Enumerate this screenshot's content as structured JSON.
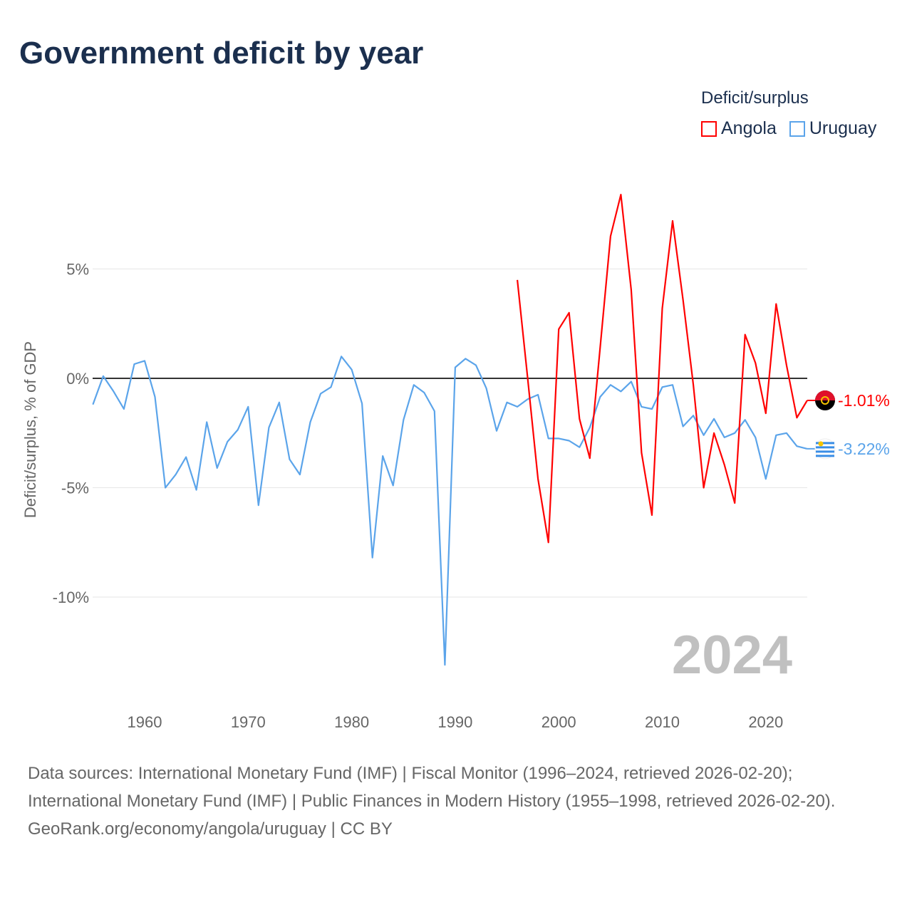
{
  "title": "Government deficit by year",
  "legend_title": "Deficit/surplus",
  "chart_data": {
    "type": "line",
    "title": "Government deficit by year",
    "ylabel": "Deficit/surplus, % of GDP",
    "xlabel": "",
    "xlim": [
      1955,
      2024
    ],
    "ylim": [
      -14,
      9
    ],
    "x_ticks": [
      1960,
      1970,
      1980,
      1990,
      2000,
      2010,
      2020
    ],
    "y_ticks": [
      {
        "v": 5,
        "label": "5%"
      },
      {
        "v": 0,
        "label": "0%"
      },
      {
        "v": -5,
        "label": "-5%"
      },
      {
        "v": -10,
        "label": "-10%"
      }
    ],
    "grid": true,
    "legend_position": "top-right",
    "year_label": "2024",
    "series": [
      {
        "name": "Angola",
        "color": "#ff0000",
        "end_label": "-1.01%",
        "start_year": 1996,
        "values": [
          4.5,
          0.0,
          -4.6,
          -7.5,
          2.25,
          3.0,
          -1.85,
          -3.65,
          1.4,
          6.5,
          8.4,
          4.05,
          -3.4,
          -6.25,
          3.2,
          7.2,
          3.6,
          -0.3,
          -5.0,
          -2.5,
          -3.95,
          -5.7,
          2.0,
          0.7,
          -1.6,
          3.4,
          0.6,
          -1.8,
          -1.01
        ]
      },
      {
        "name": "Uruguay",
        "color": "#5ba4ea",
        "end_label": "-3.22%",
        "start_year": 1955,
        "values": [
          -1.2,
          0.1,
          -0.6,
          -1.4,
          0.65,
          0.8,
          -0.85,
          -5.0,
          -4.4,
          -3.6,
          -5.1,
          -2.0,
          -4.1,
          -2.9,
          -2.35,
          -1.3,
          -5.8,
          -2.25,
          -1.1,
          -3.7,
          -4.4,
          -2.0,
          -0.7,
          -0.4,
          1.0,
          0.4,
          -1.15,
          -8.2,
          -3.55,
          -4.9,
          -1.9,
          -0.3,
          -0.65,
          -1.5,
          -13.1,
          0.5,
          0.9,
          0.6,
          -0.45,
          -2.4,
          -1.1,
          -1.3,
          -0.95,
          -0.75,
          -2.75,
          -2.75,
          -2.85,
          -3.15,
          -2.25,
          -0.85,
          -0.3,
          -0.6,
          -0.15,
          -1.3,
          -1.4,
          -0.4,
          -0.3,
          -2.2,
          -1.7,
          -2.6,
          -1.85,
          -2.7,
          -2.5,
          -1.9,
          -2.7,
          -4.6,
          -2.6,
          -2.5,
          -3.1,
          -3.22
        ]
      }
    ]
  },
  "footer": {
    "sources": "Data sources: International Monetary Fund (IMF) | Fiscal Monitor (1996–2024, retrieved 2026-02-20); International Monetary Fund (IMF) | Public Finances in Modern History (1955–1998, retrieved 2026-02-20).",
    "link": "GeoRank.org/economy/angola/uruguay",
    "license": " | CC BY"
  }
}
